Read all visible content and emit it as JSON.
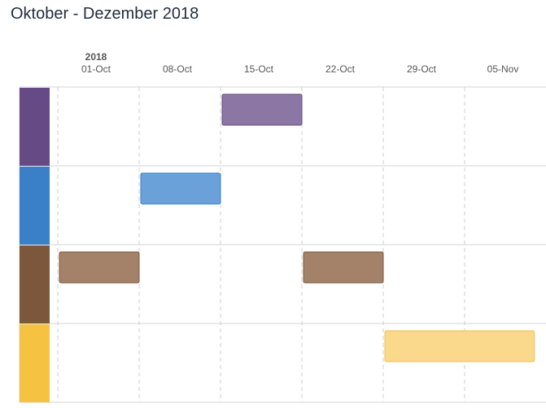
{
  "header": {
    "title": "Oktober - Dezember 2018"
  },
  "colors": {
    "grid": "#d6d6d6",
    "gridline": "#cfcfcf",
    "tick_text": "#555555",
    "year_text": "#555555"
  },
  "chart_data": {
    "type": "gantt",
    "title": "",
    "year_label": "2018",
    "x_start": "2018-09-29",
    "x_end": "2018-11-11",
    "ticks": [
      {
        "date": "2018-10-01",
        "label": "01-Oct"
      },
      {
        "date": "2018-10-08",
        "label": "08-Oct"
      },
      {
        "date": "2018-10-15",
        "label": "15-Oct"
      },
      {
        "date": "2018-10-22",
        "label": "22-Oct"
      },
      {
        "date": "2018-10-29",
        "label": "29-Oct"
      },
      {
        "date": "2018-11-05",
        "label": "05-Nov"
      }
    ],
    "rows": [
      {
        "color": "#654a86",
        "bar_fill": "#8c77a4",
        "bar_stroke": "#654a86",
        "tasks": [
          {
            "start": "2018-10-15",
            "end": "2018-10-22"
          }
        ]
      },
      {
        "color": "#3a80c8",
        "bar_fill": "#6aa1d8",
        "bar_stroke": "#3a80c8",
        "tasks": [
          {
            "start": "2018-10-08",
            "end": "2018-10-15"
          }
        ]
      },
      {
        "color": "#7d573b",
        "bar_fill": "#a4826a",
        "bar_stroke": "#7d573b",
        "tasks": [
          {
            "start": "2018-10-01",
            "end": "2018-10-08"
          },
          {
            "start": "2018-10-22",
            "end": "2018-10-29"
          }
        ]
      },
      {
        "color": "#f5c242",
        "bar_fill": "#fad88c",
        "bar_stroke": "#f0c050",
        "tasks": [
          {
            "start": "2018-10-29",
            "end": "2018-11-11"
          }
        ]
      }
    ]
  }
}
